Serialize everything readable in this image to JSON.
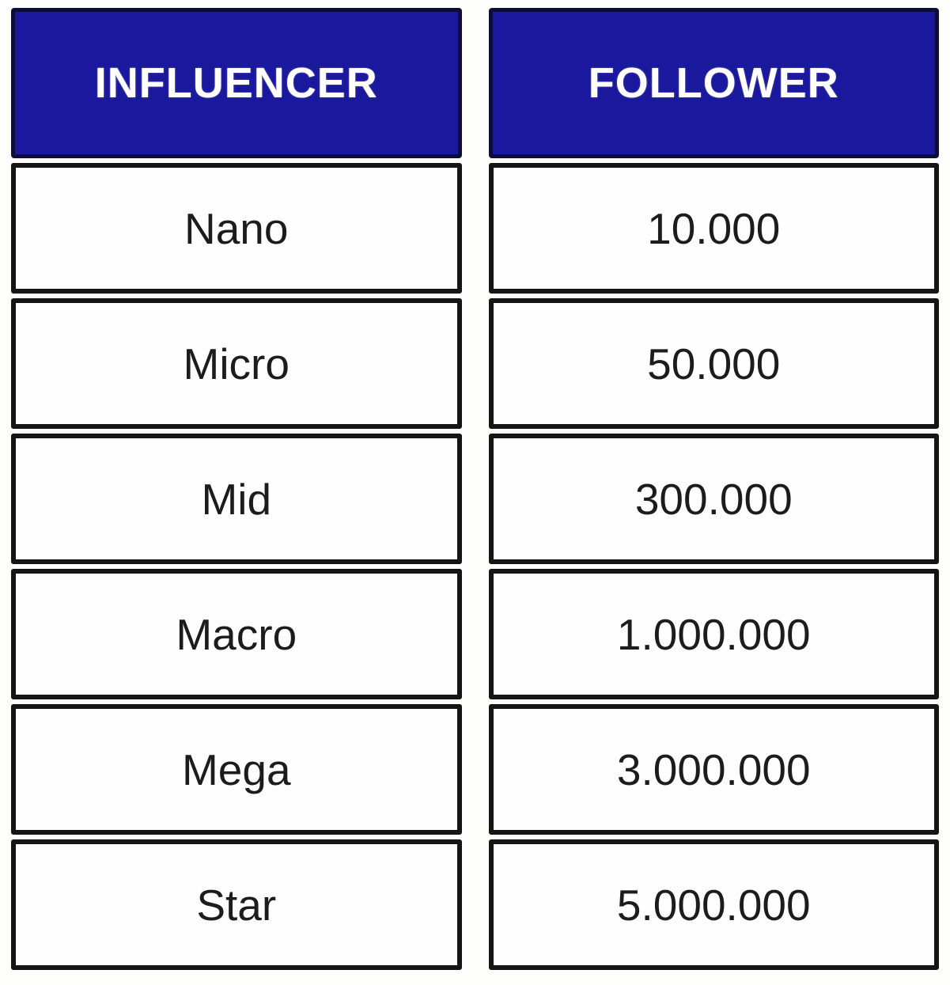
{
  "colors": {
    "header_bg": "#1a189c",
    "header_border": "#0d0d38",
    "header_text": "#ffffff",
    "cell_bg": "#fefefe",
    "cell_border": "#151515",
    "cell_text": "#1c1c1c",
    "page_bg": "#fdfdfb"
  },
  "chart_data": {
    "type": "table",
    "title": "",
    "columns": [
      "INFLUENCER",
      "FOLLOWER"
    ],
    "rows": [
      [
        "Nano",
        "10.000"
      ],
      [
        "Micro",
        "50.000"
      ],
      [
        "Mid",
        "300.000"
      ],
      [
        "Macro",
        "1.000.000"
      ],
      [
        "Mega",
        "3.000.000"
      ],
      [
        "Star",
        "5.000.000"
      ]
    ],
    "layout": {
      "columns_count": 2,
      "rows_count": 6,
      "header_style": "white bold caps on deep blue",
      "body_style": "black text on white, thick black box borders, gaps between boxes"
    }
  }
}
